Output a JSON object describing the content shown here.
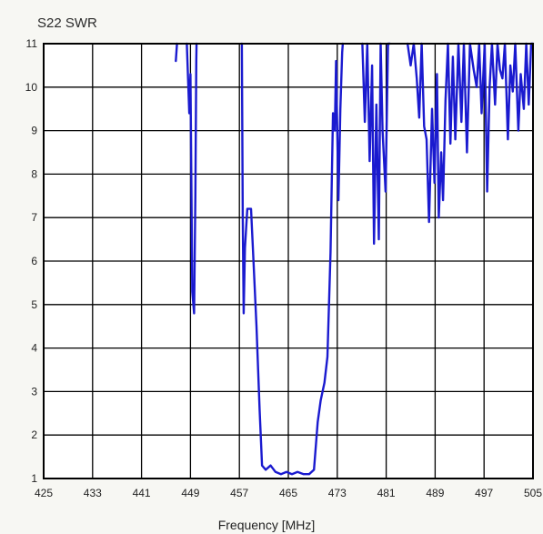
{
  "chart_data": {
    "type": "line",
    "title": "S22 SWR",
    "xlabel": "Frequency [MHz]",
    "ylabel": "",
    "xlim": [
      425,
      505
    ],
    "ylim": [
      1,
      11
    ],
    "grid": true,
    "x_ticks": [
      "425",
      "433",
      "441",
      "449",
      "457",
      "465",
      "473",
      "481",
      "489",
      "497",
      "505"
    ],
    "y_ticks": [
      "1",
      "2",
      "3",
      "4",
      "5",
      "6",
      "7",
      "8",
      "9",
      "10",
      "11"
    ],
    "series": [
      {
        "color": "#1a1acf",
        "segments": [
          [
            [
              446.6,
              10.6
            ],
            [
              446.8,
              11
            ]
          ],
          [
            [
              448.4,
              11
            ],
            [
              448.8,
              9.4
            ],
            [
              449.0,
              10.3
            ],
            [
              449.3,
              5.3
            ],
            [
              449.6,
              4.8
            ],
            [
              449.8,
              7.5
            ],
            [
              449.95,
              10.6
            ],
            [
              450.0,
              11
            ]
          ],
          [
            [
              457.4,
              11
            ],
            [
              457.55,
              7.0
            ],
            [
              457.7,
              4.8
            ],
            [
              457.9,
              6.3
            ],
            [
              458.3,
              7.2
            ],
            [
              458.9,
              7.2
            ],
            [
              459.3,
              6.0
            ],
            [
              459.8,
              4.5
            ],
            [
              460.3,
              2.6
            ],
            [
              460.7,
              1.3
            ],
            [
              461.3,
              1.2
            ],
            [
              462.1,
              1.3
            ],
            [
              462.9,
              1.15
            ],
            [
              463.8,
              1.1
            ],
            [
              464.7,
              1.15
            ],
            [
              465.6,
              1.1
            ],
            [
              466.5,
              1.15
            ],
            [
              467.5,
              1.1
            ],
            [
              468.4,
              1.1
            ],
            [
              469.2,
              1.2
            ],
            [
              469.8,
              2.3
            ],
            [
              470.3,
              2.8
            ],
            [
              470.9,
              3.2
            ],
            [
              471.4,
              3.8
            ],
            [
              471.9,
              6.2
            ],
            [
              472.3,
              9.4
            ],
            [
              472.6,
              9.0
            ],
            [
              472.8,
              10.6
            ],
            [
              473.2,
              7.4
            ],
            [
              473.5,
              9.5
            ],
            [
              473.8,
              10.8
            ],
            [
              473.9,
              11
            ]
          ],
          [
            [
              477.1,
              11
            ],
            [
              477.5,
              9.2
            ],
            [
              477.9,
              11
            ],
            [
              478.3,
              8.3
            ],
            [
              478.7,
              10.5
            ],
            [
              479.0,
              6.4
            ],
            [
              479.4,
              9.6
            ],
            [
              479.8,
              6.5
            ],
            [
              480.1,
              11
            ],
            [
              480.4,
              9.0
            ],
            [
              480.9,
              7.6
            ],
            [
              481.3,
              11
            ],
            [
              481.6,
              11
            ]
          ],
          [
            [
              484.5,
              11
            ],
            [
              485.0,
              10.5
            ],
            [
              485.5,
              11
            ],
            [
              486.0,
              10.2
            ],
            [
              486.4,
              9.3
            ],
            [
              486.8,
              11
            ],
            [
              487.2,
              9.1
            ],
            [
              487.6,
              8.8
            ],
            [
              488.0,
              6.9
            ],
            [
              488.5,
              9.5
            ],
            [
              488.9,
              7.8
            ],
            [
              489.3,
              10.3
            ],
            [
              489.6,
              7.0
            ],
            [
              490.0,
              8.5
            ],
            [
              490.3,
              7.4
            ],
            [
              490.7,
              9.7
            ],
            [
              491.1,
              11
            ],
            [
              491.5,
              8.7
            ],
            [
              491.9,
              10.7
            ],
            [
              492.3,
              8.8
            ],
            [
              492.8,
              11
            ],
            [
              493.3,
              9.2
            ],
            [
              493.7,
              11
            ],
            [
              494.2,
              8.5
            ],
            [
              494.7,
              11
            ],
            [
              495.3,
              10.4
            ],
            [
              495.8,
              10.0
            ],
            [
              496.2,
              11
            ],
            [
              496.6,
              9.4
            ],
            [
              497.1,
              11
            ],
            [
              497.5,
              7.6
            ],
            [
              497.9,
              10.0
            ],
            [
              498.3,
              11
            ],
            [
              498.8,
              9.6
            ],
            [
              499.2,
              11
            ],
            [
              499.6,
              10.4
            ],
            [
              500.0,
              10.2
            ],
            [
              500.4,
              11
            ],
            [
              500.9,
              8.8
            ],
            [
              501.3,
              10.5
            ],
            [
              501.7,
              9.9
            ],
            [
              502.1,
              11
            ],
            [
              502.6,
              9.0
            ],
            [
              503.0,
              10.3
            ],
            [
              503.5,
              9.5
            ],
            [
              503.9,
              11
            ],
            [
              504.3,
              9.6
            ],
            [
              504.7,
              11
            ],
            [
              505.0,
              11
            ]
          ]
        ]
      }
    ]
  }
}
